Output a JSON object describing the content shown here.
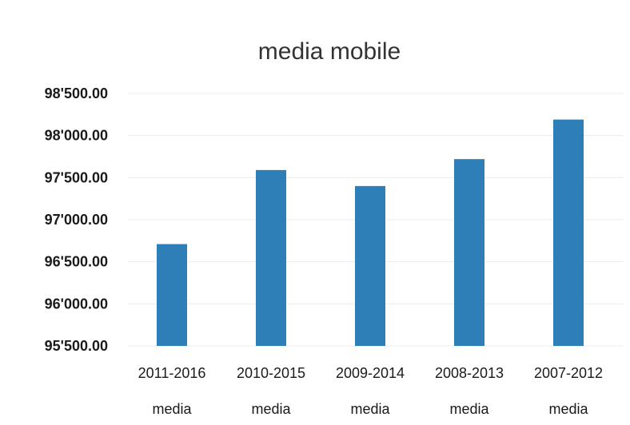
{
  "chart_data": {
    "type": "bar",
    "title": "media mobile",
    "categories": [
      "2011-2016",
      "2010-2015",
      "2009-2014",
      "2008-2013",
      "2007-2012"
    ],
    "category_sublabels": [
      "media",
      "media",
      "media",
      "media",
      "media"
    ],
    "values": [
      96710,
      97590,
      97400,
      97720,
      98190
    ],
    "ylim": [
      95500,
      98500
    ],
    "yticks": [
      98500,
      98000,
      97500,
      97000,
      96500,
      96000,
      95500
    ],
    "ytick_labels": [
      "98'500.00",
      "98'000.00",
      "97'500.00",
      "97'000.00",
      "96'500.00",
      "96'000.00",
      "95'500.00"
    ],
    "xlabel": "",
    "ylabel": "",
    "grid": true,
    "legend": "none",
    "bar_color": "#2e7fb8"
  }
}
